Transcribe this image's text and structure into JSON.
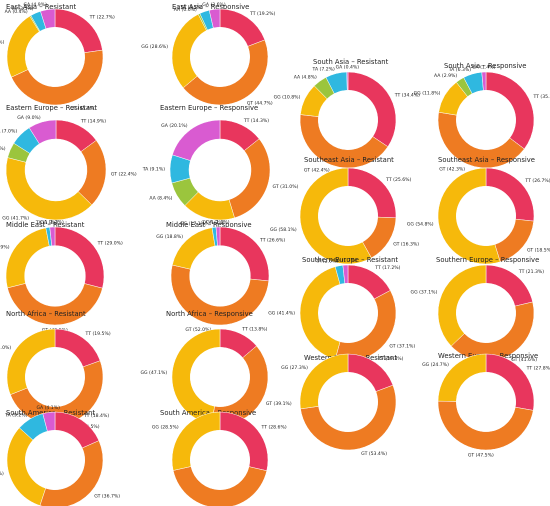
{
  "colors": {
    "AA": "#9bc53d",
    "TA": "#2fb8e0",
    "GA": "#d95bd1",
    "TT": "#e8365d",
    "GT": "#ee7b22",
    "GG": "#f6b90b"
  },
  "chart_data": [
    {
      "type": "pie",
      "variant": "donut",
      "title": "East Asia – Resistant",
      "slices": [
        {
          "label": "TT",
          "value": 22.7
        },
        {
          "label": "GT",
          "value": 45.4
        },
        {
          "label": "GG",
          "value": 23.1
        },
        {
          "label": "AA",
          "value": 0.4
        },
        {
          "label": "TA",
          "value": 3.5
        },
        {
          "label": "GA",
          "value": 4.9
        }
      ]
    },
    {
      "type": "pie",
      "variant": "donut",
      "title": "East Asia – Responsive",
      "slices": [
        {
          "label": "TT",
          "value": 19.2
        },
        {
          "label": "GT",
          "value": 44.7
        },
        {
          "label": "GG",
          "value": 28.6
        },
        {
          "label": "AA",
          "value": 0.6
        },
        {
          "label": "TA",
          "value": 3.3
        },
        {
          "label": "GA",
          "value": 3.6
        }
      ]
    },
    {
      "type": "pie",
      "variant": "donut",
      "title": "Eastern Europe – Resistant",
      "slices": [
        {
          "label": "TT",
          "value": 14.9
        },
        {
          "label": "GT",
          "value": 22.4
        },
        {
          "label": "GG",
          "value": 41.7
        },
        {
          "label": "AA",
          "value": 5.0
        },
        {
          "label": "TA",
          "value": 7.0
        },
        {
          "label": "GA",
          "value": 9.0
        }
      ]
    },
    {
      "type": "pie",
      "variant": "donut",
      "title": "Eastern Europe – Responsive",
      "slices": [
        {
          "label": "TT",
          "value": 14.3
        },
        {
          "label": "GT",
          "value": 31.0
        },
        {
          "label": "GG",
          "value": 17.1
        },
        {
          "label": "AA",
          "value": 8.4
        },
        {
          "label": "TA",
          "value": 9.1
        },
        {
          "label": "GA",
          "value": 20.1
        }
      ]
    },
    {
      "type": "pie",
      "variant": "donut",
      "title": "Middle East – Resistant",
      "slices": [
        {
          "label": "TT",
          "value": 29.0
        },
        {
          "label": "GT",
          "value": 42.1
        },
        {
          "label": "GG",
          "value": 25.9
        },
        {
          "label": "TA",
          "value": 1.3
        },
        {
          "label": "GA",
          "value": 1.7
        }
      ]
    },
    {
      "type": "pie",
      "variant": "donut",
      "title": "Middle East – Responsive",
      "slices": [
        {
          "label": "TT",
          "value": 26.6
        },
        {
          "label": "GT",
          "value": 52.0
        },
        {
          "label": "GG",
          "value": 18.8
        },
        {
          "label": "TA",
          "value": 1.3
        },
        {
          "label": "GA",
          "value": 1.3
        }
      ]
    },
    {
      "type": "pie",
      "variant": "donut",
      "title": "North Africa – Resistant",
      "slices": [
        {
          "label": "TT",
          "value": 19.5
        },
        {
          "label": "GT",
          "value": 49.5
        },
        {
          "label": "GG",
          "value": 31.0
        }
      ]
    },
    {
      "type": "pie",
      "variant": "donut",
      "title": "North Africa – Responsive",
      "slices": [
        {
          "label": "TT",
          "value": 13.8
        },
        {
          "label": "GT",
          "value": 39.1
        },
        {
          "label": "GG",
          "value": 47.1
        }
      ]
    },
    {
      "type": "pie",
      "variant": "donut",
      "title": "South America – Resistant",
      "slices": [
        {
          "label": "TT",
          "value": 18.4
        },
        {
          "label": "GT",
          "value": 36.7
        },
        {
          "label": "GG",
          "value": 31.6
        },
        {
          "label": "TA",
          "value": 9.2
        },
        {
          "label": "GA",
          "value": 4.1
        }
      ]
    },
    {
      "type": "pie",
      "variant": "donut",
      "title": "South America – Responsive",
      "slices": [
        {
          "label": "TT",
          "value": 28.6
        },
        {
          "label": "GT",
          "value": 42.9
        },
        {
          "label": "GG",
          "value": 28.5
        }
      ]
    },
    {
      "type": "pie",
      "variant": "donut",
      "title": "South Asia – Resistant",
      "slices": [
        {
          "label": "TT",
          "value": 34.4
        },
        {
          "label": "GT",
          "value": 42.4
        },
        {
          "label": "GG",
          "value": 10.8
        },
        {
          "label": "AA",
          "value": 4.8
        },
        {
          "label": "TA",
          "value": 7.2
        },
        {
          "label": "GA",
          "value": 0.4
        }
      ]
    },
    {
      "type": "pie",
      "variant": "donut",
      "title": "South Asia – Responsive",
      "slices": [
        {
          "label": "TT",
          "value": 35.3
        },
        {
          "label": "GT",
          "value": 42.3
        },
        {
          "label": "GG",
          "value": 11.8
        },
        {
          "label": "AA",
          "value": 2.9
        },
        {
          "label": "TA",
          "value": 6.3
        },
        {
          "label": "GA",
          "value": 1.4
        }
      ]
    },
    {
      "type": "pie",
      "variant": "donut",
      "title": "Southeast Asia – Resistant",
      "slices": [
        {
          "label": "TT",
          "value": 25.6
        },
        {
          "label": "GT",
          "value": 16.3
        },
        {
          "label": "GG",
          "value": 58.1
        }
      ]
    },
    {
      "type": "pie",
      "variant": "donut",
      "title": "Southeast Asia – Responsive",
      "slices": [
        {
          "label": "TT",
          "value": 26.7
        },
        {
          "label": "GT",
          "value": 18.5
        },
        {
          "label": "GG",
          "value": 54.8
        }
      ]
    },
    {
      "type": "pie",
      "variant": "donut",
      "title": "Southern Europe – Resistant",
      "slices": [
        {
          "label": "TT",
          "value": 17.2
        },
        {
          "label": "GT",
          "value": 37.1
        },
        {
          "label": "GG",
          "value": 41.4
        },
        {
          "label": "TA",
          "value": 2.6
        },
        {
          "label": "GA",
          "value": 1.7
        }
      ]
    },
    {
      "type": "pie",
      "variant": "donut",
      "title": "Southern Europe – Responsive",
      "slices": [
        {
          "label": "TT",
          "value": 21.3
        },
        {
          "label": "GT",
          "value": 41.6
        },
        {
          "label": "GG",
          "value": 37.1
        }
      ]
    },
    {
      "type": "pie",
      "variant": "donut",
      "title": "Western Europe – Resistant",
      "slices": [
        {
          "label": "TT",
          "value": 19.3
        },
        {
          "label": "GT",
          "value": 53.4
        },
        {
          "label": "GG",
          "value": 27.3
        }
      ]
    },
    {
      "type": "pie",
      "variant": "donut",
      "title": "Western Europe – Responsive",
      "slices": [
        {
          "label": "TT",
          "value": 27.8
        },
        {
          "label": "GT",
          "value": 47.5
        },
        {
          "label": "GG",
          "value": 24.7
        }
      ]
    }
  ]
}
